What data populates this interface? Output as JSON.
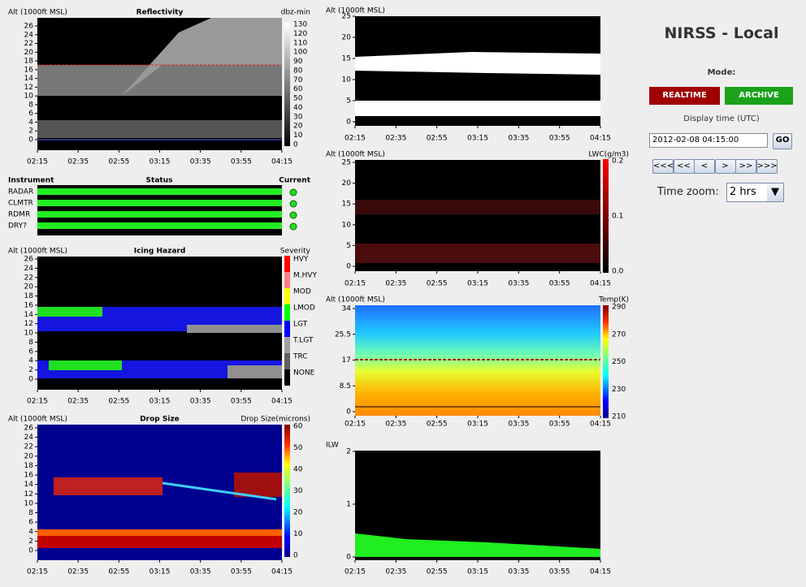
{
  "time_ticks": [
    "02:15",
    "02:35",
    "02:55",
    "03:15",
    "03:35",
    "03:55",
    "04:15"
  ],
  "reflectivity": {
    "y_label": "Alt (1000ft MSL)",
    "title": "Reflectivity",
    "unit": "dbz-min",
    "yticks": [
      "26",
      "24",
      "22",
      "20",
      "18",
      "16",
      "14",
      "12",
      "10",
      "8",
      "6",
      "4",
      "2",
      "0"
    ],
    "scale": [
      "130",
      "120",
      "110",
      "100",
      "90",
      "80",
      "70",
      "60",
      "50",
      "40",
      "30",
      "20",
      "10",
      "0"
    ]
  },
  "status": {
    "headers": [
      "Instrument",
      "Status",
      "Current"
    ],
    "instruments": [
      "RADAR",
      "CLMTR",
      "RDMR",
      "DRY?"
    ]
  },
  "icing": {
    "y_label": "Alt (1000ft MSL)",
    "title": "Icing Hazard",
    "unit": "Severity",
    "yticks": [
      "26",
      "24",
      "22",
      "20",
      "18",
      "16",
      "14",
      "12",
      "10",
      "8",
      "6",
      "4",
      "2",
      "0"
    ],
    "scale": [
      "HVY",
      "M.HVY",
      "MOD",
      "LMOD",
      "LGT",
      "T.LGT",
      "TRC",
      "NONE"
    ]
  },
  "drop_size": {
    "y_label": "Alt (1000ft MSL)",
    "title": "Drop Size",
    "unit": "Drop Size(microns)",
    "yticks": [
      "26",
      "24",
      "22",
      "20",
      "18",
      "16",
      "14",
      "12",
      "10",
      "8",
      "6",
      "4",
      "2",
      "0"
    ],
    "scale": [
      "60",
      "50",
      "40",
      "30",
      "20",
      "10",
      "0"
    ]
  },
  "cloud_mask": {
    "y_label": "Alt (1000ft MSL)",
    "yticks": [
      "25",
      "20",
      "15",
      "10",
      "5",
      "0"
    ]
  },
  "lwc": {
    "y_label": "Alt (1000ft MSL)",
    "unit": "LWC(g/m3)",
    "yticks": [
      "25",
      "20",
      "15",
      "10",
      "5",
      "0"
    ],
    "scale": [
      "0.2",
      "0.1",
      "0.0"
    ]
  },
  "temperature": {
    "y_label": "Alt (1000ft MSL)",
    "unit": "Temp(K)",
    "yticks": [
      "34",
      "25.5",
      "17",
      "8.5",
      "0"
    ],
    "scale": [
      "290",
      "270",
      "250",
      "230",
      "210"
    ]
  },
  "ilw": {
    "y_label": "ILW",
    "yticks": [
      "2",
      "1",
      "0"
    ]
  },
  "controls": {
    "title": "NIRSS - Local",
    "mode_label": "Mode:",
    "realtime": "REALTIME",
    "archive": "ARCHIVE",
    "display_time_label": "Display time (UTC)",
    "display_time": "2012-02-08 04:15:00",
    "go": "GO",
    "nav": [
      "<<<",
      "<<",
      "<",
      ">",
      ">>",
      ">>>"
    ],
    "zoom_label": "Time zoom:",
    "zoom": "2 hrs"
  }
}
